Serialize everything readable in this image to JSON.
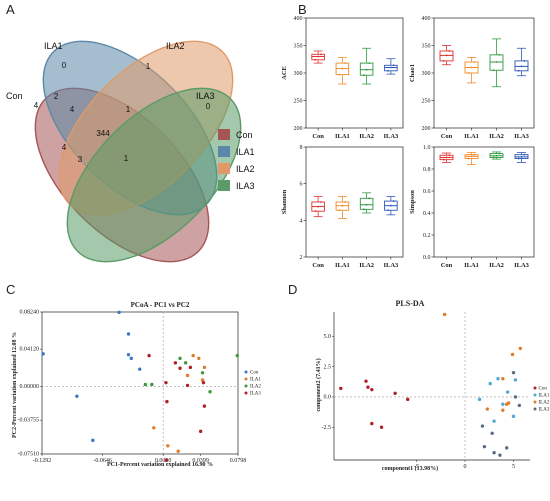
{
  "panel_labels": {
    "a": "A",
    "b": "B",
    "c": "C",
    "d": "D"
  },
  "chart_data": [
    {
      "type": "venn",
      "sets": [
        "Con",
        "ILA1",
        "ILA2",
        "ILA3"
      ],
      "set_labels": [
        "Con",
        "ILA1",
        "ILA2",
        "ILA3"
      ],
      "colors": {
        "Con": "#a65555",
        "ILA1": "#5b88a8",
        "ILA2": "#e09a6a",
        "ILA3": "#5a9a66"
      },
      "regions": [
        {
          "sets": [
            "ILA1"
          ],
          "value": "0"
        },
        {
          "sets": [
            "ILA2"
          ],
          "value": "1"
        },
        {
          "sets": [
            "ILA3"
          ],
          "value": "0"
        },
        {
          "sets": [
            "Con"
          ],
          "value": "4"
        },
        {
          "sets": [
            "Con",
            "ILA1"
          ],
          "value": "2"
        },
        {
          "sets": [
            "Con",
            "ILA1",
            "ILA2"
          ],
          "value": "4"
        },
        {
          "sets": [
            "ILA1",
            "ILA2",
            "ILA3"
          ],
          "value": "1"
        },
        {
          "sets": [
            "Con",
            "ILA1",
            "ILA2",
            "ILA3"
          ],
          "value": "344"
        },
        {
          "sets": [
            "Con",
            "ILA2"
          ],
          "value": "4"
        },
        {
          "sets": [
            "Con",
            "ILA2",
            "ILA3"
          ],
          "value": "3"
        },
        {
          "sets": [
            "Con",
            "ILA1",
            "ILA3"
          ],
          "value": "1"
        }
      ],
      "legend": [
        "Con",
        "ILA1",
        "ILA2",
        "ILA3"
      ]
    },
    {
      "type": "box",
      "ylabel": "ACE",
      "categories": [
        "Con",
        "ILA1",
        "ILA2",
        "ILA3"
      ],
      "ylim": [
        200,
        400
      ],
      "yticks": [
        "200",
        "250",
        "300",
        "350",
        "400"
      ],
      "boxes": [
        {
          "min": 318,
          "q1": 324,
          "median": 330,
          "q3": 334,
          "max": 340
        },
        {
          "min": 280,
          "q1": 297,
          "median": 308,
          "q3": 318,
          "max": 328
        },
        {
          "min": 280,
          "q1": 296,
          "median": 306,
          "q3": 318,
          "max": 345
        },
        {
          "min": 298,
          "q1": 304,
          "median": 310,
          "q3": 314,
          "max": 326
        }
      ]
    },
    {
      "type": "box",
      "ylabel": "Chao1",
      "categories": [
        "Con",
        "ILA1",
        "ILA2",
        "ILA3"
      ],
      "ylim": [
        200,
        400
      ],
      "yticks": [
        "200",
        "250",
        "300",
        "350",
        "400"
      ],
      "boxes": [
        {
          "min": 315,
          "q1": 322,
          "median": 332,
          "q3": 340,
          "max": 350
        },
        {
          "min": 282,
          "q1": 300,
          "median": 310,
          "q3": 320,
          "max": 328
        },
        {
          "min": 275,
          "q1": 305,
          "median": 320,
          "q3": 333,
          "max": 362
        },
        {
          "min": 295,
          "q1": 304,
          "median": 312,
          "q3": 322,
          "max": 345
        }
      ]
    },
    {
      "type": "box",
      "ylabel": "Shannon",
      "categories": [
        "Con",
        "ILA1",
        "ILA2",
        "ILA3"
      ],
      "ylim": [
        2,
        8
      ],
      "yticks": [
        "2",
        "4",
        "6",
        "8"
      ],
      "boxes": [
        {
          "min": 4.2,
          "q1": 4.5,
          "median": 4.75,
          "q3": 5.0,
          "max": 5.3
        },
        {
          "min": 4.1,
          "q1": 4.55,
          "median": 4.8,
          "q3": 5.0,
          "max": 5.3
        },
        {
          "min": 4.4,
          "q1": 4.6,
          "median": 4.85,
          "q3": 5.2,
          "max": 5.5
        },
        {
          "min": 4.3,
          "q1": 4.55,
          "median": 4.8,
          "q3": 5.05,
          "max": 5.3
        }
      ]
    },
    {
      "type": "box",
      "ylabel": "Simpson",
      "categories": [
        "Con",
        "ILA1",
        "ILA2",
        "ILA3"
      ],
      "ylim": [
        0.0,
        1.0
      ],
      "yticks": [
        "0.0",
        "0.2",
        "0.4",
        "0.6",
        "0.8",
        "1.0"
      ],
      "boxes": [
        {
          "min": 0.86,
          "q1": 0.885,
          "median": 0.905,
          "q3": 0.925,
          "max": 0.945
        },
        {
          "min": 0.84,
          "q1": 0.895,
          "median": 0.915,
          "q3": 0.93,
          "max": 0.95
        },
        {
          "min": 0.89,
          "q1": 0.905,
          "median": 0.92,
          "q3": 0.94,
          "max": 0.955
        },
        {
          "min": 0.86,
          "q1": 0.895,
          "median": 0.91,
          "q3": 0.93,
          "max": 0.95
        }
      ]
    },
    {
      "type": "scatter",
      "title": "PCoA - PC1 vs PC2",
      "xlabel": "PC1-Percent variation explained 16.90 %",
      "ylabel": "PC2-Percent variation explained 12.08 %",
      "xticks": [
        "-0.1292",
        "-0.0646",
        "0.0000",
        "0.0399",
        "0.0798"
      ],
      "yticks": [
        "-0.07510",
        "-0.03755",
        "0.00000",
        "0.04120",
        "0.08240"
      ],
      "legend": [
        "Con",
        "ILA1",
        "ILA2",
        "ILA3"
      ],
      "series": [
        {
          "name": "Con",
          "color": "#3a78c2",
          "points": [
            [
              -0.128,
              0.036
            ],
            [
              -0.092,
              -0.011
            ],
            [
              -0.075,
              -0.06
            ],
            [
              -0.047,
              0.082
            ],
            [
              -0.037,
              0.058
            ],
            [
              -0.037,
              0.035
            ],
            [
              -0.034,
              0.031
            ],
            [
              -0.025,
              0.019
            ]
          ]
        },
        {
          "name": "ILA1",
          "color": "#e07b2a",
          "points": [
            [
              -0.01,
              -0.046
            ],
            [
              0.005,
              -0.066
            ],
            [
              0.016,
              -0.072
            ],
            [
              0.026,
              0.012
            ],
            [
              0.032,
              0.034
            ],
            [
              0.038,
              0.031
            ],
            [
              0.044,
              0.021
            ],
            [
              0.042,
              0.007
            ]
          ]
        },
        {
          "name": "ILA2",
          "color": "#3c9a3c",
          "points": [
            [
              -0.019,
              0.002
            ],
            [
              -0.012,
              0.002
            ],
            [
              0.018,
              0.031
            ],
            [
              0.024,
              0.026
            ],
            [
              0.042,
              0.015
            ],
            [
              0.05,
              -0.006
            ],
            [
              0.079,
              0.034
            ]
          ]
        },
        {
          "name": "ILA3",
          "color": "#b0202a",
          "points": [
            [
              -0.015,
              0.034
            ],
            [
              0.003,
              0.004
            ],
            [
              0.004,
              -0.017
            ],
            [
              0.013,
              0.026
            ],
            [
              0.018,
              0.02
            ],
            [
              0.026,
              0.001
            ],
            [
              0.029,
              0.021
            ],
            [
              0.043,
              0.004
            ],
            [
              0.044,
              -0.022
            ],
            [
              0.04,
              -0.05
            ],
            [
              0.003,
              -0.082
            ]
          ]
        }
      ]
    },
    {
      "type": "scatter",
      "title": "PLS-DA",
      "xlabel": "component1 (13.98%)",
      "ylabel": "component2 (7.41%)",
      "xticks": [
        "-5",
        "0",
        "5"
      ],
      "yticks": [
        "-2.5",
        "0.0",
        "2.5",
        "5.0"
      ],
      "legend": [
        "Con",
        "ILA1",
        "ILA2",
        "ILA3"
      ],
      "series": [
        {
          "name": "Con",
          "color": "#b0202a",
          "points": [
            [
              -12.8,
              0.7
            ],
            [
              -10.2,
              1.3
            ],
            [
              -10.0,
              0.8
            ],
            [
              -9.6,
              0.6
            ],
            [
              -9.6,
              -2.2
            ],
            [
              -8.6,
              -2.5
            ],
            [
              -7.2,
              0.3
            ],
            [
              -5.9,
              -0.2
            ]
          ]
        },
        {
          "name": "ILA1",
          "color": "#4fa8d8",
          "points": [
            [
              1.5,
              -0.2
            ],
            [
              2.6,
              1.1
            ],
            [
              3.0,
              -2.0
            ],
            [
              3.4,
              1.5
            ],
            [
              3.9,
              -0.6
            ],
            [
              4.4,
              0.4
            ],
            [
              5.0,
              -1.6
            ],
            [
              5.2,
              1.4
            ]
          ]
        },
        {
          "name": "ILA2",
          "color": "#e07b2a",
          "points": [
            [
              -2.1,
              6.8
            ],
            [
              2.3,
              -1.0
            ],
            [
              3.9,
              1.5
            ],
            [
              3.9,
              -1.1
            ],
            [
              4.3,
              -0.6
            ],
            [
              4.5,
              -0.5
            ],
            [
              4.9,
              3.5
            ],
            [
              5.7,
              4.0
            ]
          ]
        },
        {
          "name": "ILA3",
          "color": "#5a6c80",
          "points": [
            [
              1.8,
              -2.4
            ],
            [
              2.0,
              -4.1
            ],
            [
              2.8,
              -3.0
            ],
            [
              3.0,
              -4.6
            ],
            [
              3.6,
              -4.8
            ],
            [
              4.3,
              -4.2
            ],
            [
              5.0,
              2.0
            ],
            [
              5.2,
              0.0
            ],
            [
              5.6,
              -0.7
            ]
          ]
        }
      ]
    }
  ]
}
